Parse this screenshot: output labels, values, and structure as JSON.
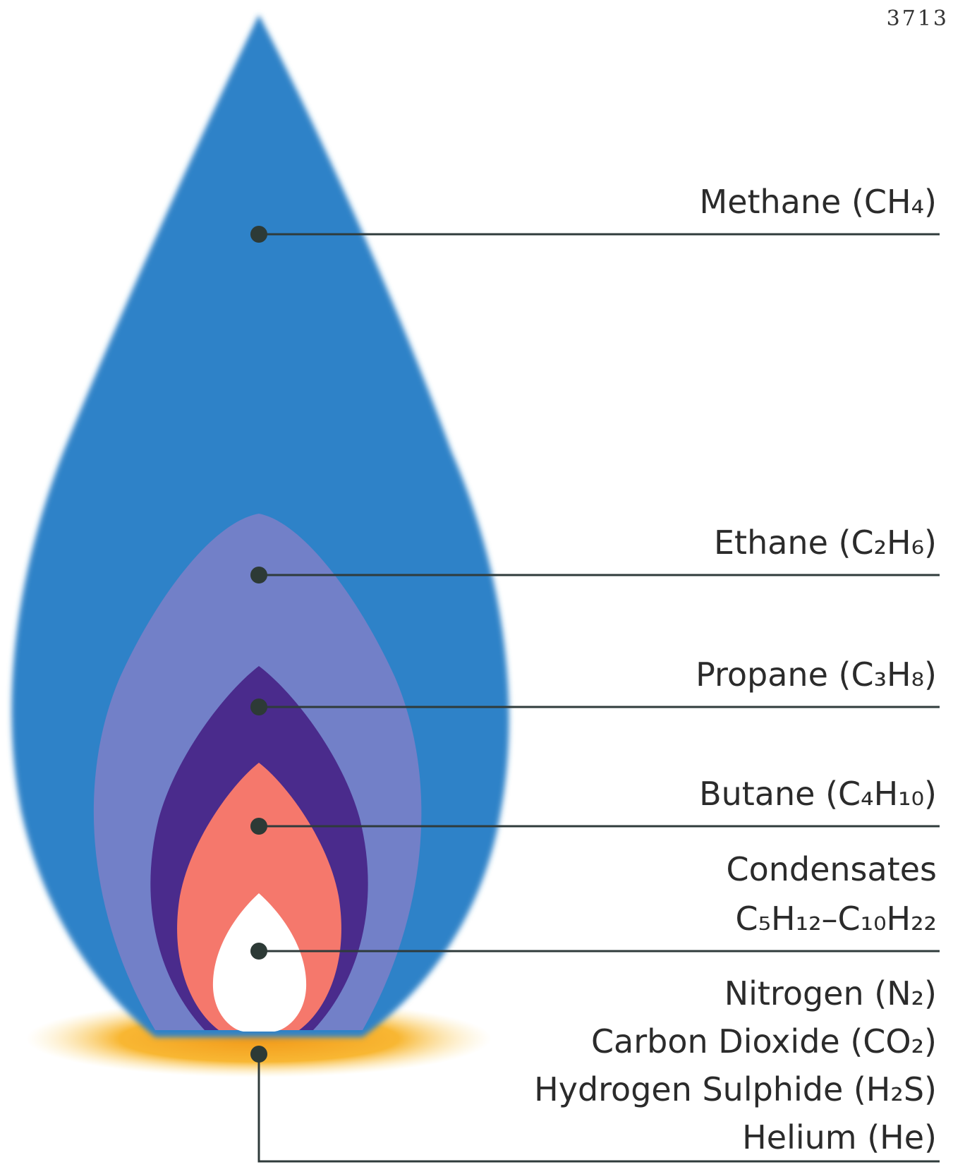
{
  "page_number": "3713",
  "labels": [
    [
      "Methane (CH₄)"
    ],
    [
      "Ethane (C₂H₆)"
    ],
    [
      "Propane (C₃H₈)"
    ],
    [
      "Butane (C₄H₁₀)"
    ],
    [
      "Condensates",
      "C₅H₁₂–C₁₀H₂₂"
    ],
    [
      "Nitrogen (N₂)",
      "Carbon Dioxide (CO₂)",
      "Hydrogen Sulphide (H₂S)",
      "Helium (He)"
    ]
  ]
}
